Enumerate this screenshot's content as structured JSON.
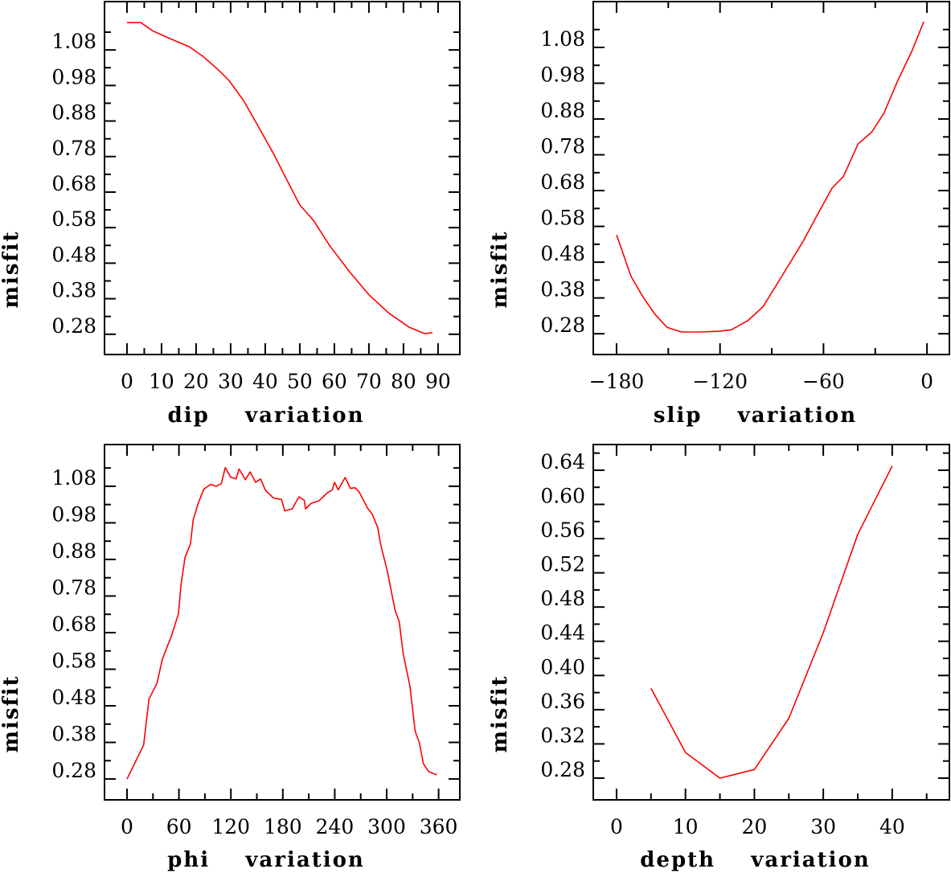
{
  "chart_data": [
    {
      "type": "line",
      "title": "",
      "xlabel": "dip    variation",
      "ylabel": "misfit",
      "xlim": [
        -6.5,
        96.3
      ],
      "ylim": [
        0.223,
        1.216
      ],
      "xticks": [
        0,
        10,
        20,
        30,
        40,
        50,
        60,
        70,
        80,
        90
      ],
      "xtick_labels": [
        "0",
        "10",
        "20",
        "30",
        "40",
        "50",
        "60",
        "70",
        "80",
        "90"
      ],
      "xminor": [
        5,
        15,
        25,
        35,
        45,
        55,
        65,
        75,
        85
      ],
      "yticks": [
        0.28,
        0.38,
        0.48,
        0.58,
        0.68,
        0.78,
        0.88,
        0.98,
        1.08
      ],
      "ytick_labels": [
        "0.28",
        "0.38",
        "0.48",
        "0.58",
        "0.68",
        "0.78",
        "0.88",
        "0.98",
        "1.08"
      ],
      "yminor": [
        0.33,
        0.43,
        0.53,
        0.63,
        0.73,
        0.83,
        0.93,
        1.03,
        1.13
      ],
      "grid": false,
      "color": "#ff0000",
      "series": [
        {
          "name": "dip",
          "x": [
            0,
            4,
            7.4,
            12,
            18,
            22,
            26,
            29.5,
            33.7,
            37.7,
            42.3,
            45.8,
            50,
            54,
            58.6,
            64.4,
            70,
            75.8,
            81.6,
            86,
            88.4
          ],
          "y": [
            1.157,
            1.157,
            1.134,
            1.114,
            1.089,
            1.062,
            1.028,
            0.994,
            0.938,
            0.87,
            0.79,
            0.723,
            0.644,
            0.6,
            0.53,
            0.456,
            0.391,
            0.339,
            0.3,
            0.282,
            0.284
          ]
        }
      ]
    },
    {
      "type": "line",
      "title": "",
      "xlabel": "slip    variation",
      "ylabel": "misfit",
      "xlim": [
        -193.5,
        13
      ],
      "ylim": [
        0.222,
        1.208
      ],
      "xticks": [
        -180,
        -120,
        -60,
        0
      ],
      "xtick_labels": [
        "−180",
        "−120",
        "−60",
        "0"
      ],
      "xminor": [
        -150,
        -90,
        -30
      ],
      "yticks": [
        0.28,
        0.38,
        0.48,
        0.58,
        0.68,
        0.78,
        0.88,
        0.98,
        1.08
      ],
      "ytick_labels": [
        "0.28",
        "0.38",
        "0.48",
        "0.58",
        "0.68",
        "0.78",
        "0.88",
        "0.98",
        "1.08"
      ],
      "yminor": [
        0.33,
        0.43,
        0.53,
        0.63,
        0.73,
        0.83,
        0.93,
        1.03,
        1.13
      ],
      "grid": false,
      "color": "#ff0000",
      "series": [
        {
          "name": "slip",
          "x": [
            -180,
            -171.6,
            -164.7,
            -157.7,
            -150.7,
            -142.3,
            -132,
            -120.5,
            -113.5,
            -104,
            -95,
            -83,
            -71.6,
            -62,
            -55,
            -48.4,
            -40,
            -32,
            -25,
            -16.7,
            -8.8,
            -1.8
          ],
          "y": [
            0.556,
            0.44,
            0.383,
            0.334,
            0.298,
            0.285,
            0.285,
            0.287,
            0.291,
            0.316,
            0.356,
            0.45,
            0.54,
            0.626,
            0.687,
            0.72,
            0.81,
            0.844,
            0.896,
            0.99,
            1.069,
            1.152
          ]
        }
      ]
    },
    {
      "type": "line",
      "title": "",
      "xlabel": "phi    variation",
      "ylabel": "misfit",
      "xlim": [
        -26,
        384.5
      ],
      "ylim": [
        0.223,
        1.194
      ],
      "xticks": [
        0,
        60,
        120,
        180,
        240,
        300,
        360
      ],
      "xtick_labels": [
        "0",
        "60",
        "120",
        "180",
        "240",
        "300",
        "360"
      ],
      "xminor": [
        30,
        90,
        150,
        210,
        270,
        330
      ],
      "yticks": [
        0.28,
        0.38,
        0.48,
        0.58,
        0.68,
        0.78,
        0.88,
        0.98,
        1.08
      ],
      "ytick_labels": [
        "0.28",
        "0.38",
        "0.48",
        "0.58",
        "0.68",
        "0.78",
        "0.88",
        "0.98",
        "1.08"
      ],
      "yminor": [
        0.33,
        0.43,
        0.53,
        0.63,
        0.73,
        0.83,
        0.93,
        1.03,
        1.13
      ],
      "grid": false,
      "color": "#ff0000",
      "series": [
        {
          "name": "phi",
          "x": [
            0,
            19.2,
            25.4,
            34.6,
            40.8,
            51.6,
            59.4,
            62.5,
            67.1,
            73.3,
            76.4,
            82.6,
            88.8,
            96.5,
            102.7,
            108.9,
            113.5,
            119.7,
            125.9,
            129.6,
            136.7,
            142.3,
            148.5,
            154.4,
            159.9,
            169.2,
            178.5,
            182.2,
            190.8,
            198.6,
            204.8,
            206.3,
            212.5,
            221.7,
            231,
            237.2,
            239.7,
            244,
            252,
            258.2,
            263.5,
            268.1,
            277.4,
            283.5,
            289.7,
            292.8,
            300.5,
            309.8,
            314.5,
            319.1,
            326.8,
            333,
            337.7,
            342.3,
            348.6,
            357.8
          ],
          "y": [
            0.28,
            0.373,
            0.498,
            0.542,
            0.607,
            0.673,
            0.732,
            0.813,
            0.886,
            0.922,
            0.988,
            1.036,
            1.072,
            1.085,
            1.08,
            1.087,
            1.131,
            1.105,
            1.1,
            1.127,
            1.098,
            1.119,
            1.091,
            1.1,
            1.069,
            1.048,
            1.044,
            1.013,
            1.018,
            1.051,
            1.042,
            1.018,
            1.033,
            1.04,
            1.061,
            1.07,
            1.091,
            1.07,
            1.104,
            1.074,
            1.076,
            1.065,
            1.022,
            1.003,
            0.967,
            0.923,
            0.85,
            0.74,
            0.71,
            0.622,
            0.534,
            0.41,
            0.38,
            0.322,
            0.3,
            0.291
          ]
        }
      ]
    },
    {
      "type": "line",
      "title": "",
      "xlabel": "depth    variation",
      "ylabel": "misfit",
      "xlim": [
        -3.38,
        48.3
      ],
      "ylim": [
        0.2546,
        0.67
      ],
      "xticks": [
        0,
        10,
        20,
        30,
        40
      ],
      "xtick_labels": [
        "0",
        "10",
        "20",
        "30",
        "40"
      ],
      "xminor": [
        5,
        15,
        25,
        35,
        45
      ],
      "yticks": [
        0.28,
        0.32,
        0.36,
        0.4,
        0.44,
        0.48,
        0.52,
        0.56,
        0.6,
        0.64
      ],
      "ytick_labels": [
        "0.28",
        "0.32",
        "0.36",
        "0.40",
        "0.44",
        "0.48",
        "0.52",
        "0.56",
        "0.60",
        "0.64"
      ],
      "yminor": [
        0.3,
        0.34,
        0.38,
        0.42,
        0.46,
        0.5,
        0.54,
        0.58,
        0.62,
        0.66
      ],
      "grid": false,
      "color": "#ff0000",
      "series": [
        {
          "name": "depth",
          "x": [
            5,
            10,
            15,
            20,
            25,
            30,
            35,
            40
          ],
          "y": [
            0.385,
            0.31,
            0.28,
            0.29,
            0.35,
            0.45,
            0.565,
            0.645
          ]
        }
      ]
    }
  ]
}
